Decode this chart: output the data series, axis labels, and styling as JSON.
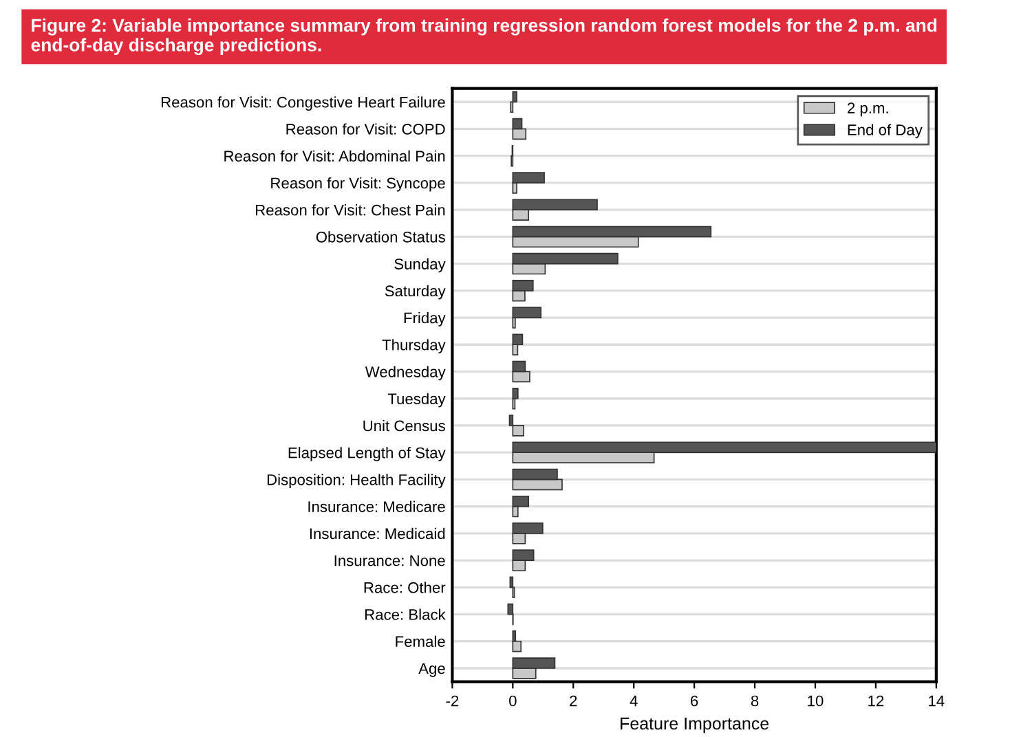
{
  "chart_data": {
    "type": "bar",
    "orientation": "horizontal",
    "title": "Figure 2: Variable importance summary from training regression random forest models for the 2 p.m. and end-of-day discharge predictions.",
    "xlabel": "Feature Importance",
    "categories": [
      "Reason for Visit: Congestive Heart Failure",
      "Reason for Visit: COPD",
      "Reason for Visit: Abdominal Pain",
      "Reason for Visit: Syncope",
      "Reason for Visit: Chest Pain",
      "Observation Status",
      "Sunday",
      "Saturday",
      "Friday",
      "Thursday",
      "Wednesday",
      "Tuesday",
      "Unit Census",
      "Elapsed Length of Stay",
      "Disposition: Health Facility",
      "Insurance: Medicare",
      "Insurance: Medicaid",
      "Insurance: None",
      "Race: Other",
      "Race: Black",
      "Female",
      "Age"
    ],
    "series": [
      {
        "name": "2 p.m.",
        "color": "#c8c8c8",
        "values": [
          -0.07,
          0.43,
          -0.05,
          0.13,
          0.52,
          4.15,
          1.07,
          0.4,
          0.08,
          0.16,
          0.56,
          0.07,
          0.36,
          4.67,
          1.63,
          0.17,
          0.41,
          0.41,
          0.05,
          0.01,
          0.27,
          0.76
        ]
      },
      {
        "name": "End of Day",
        "color": "#555555",
        "values": [
          0.13,
          0.3,
          -0.02,
          1.04,
          2.79,
          6.55,
          3.47,
          0.67,
          0.93,
          0.32,
          0.41,
          0.17,
          -0.11,
          14,
          1.47,
          0.52,
          0.99,
          0.69,
          -0.09,
          -0.16,
          0.09,
          1.39
        ]
      }
    ],
    "xlim": [
      -2,
      14
    ],
    "xticks": [
      -2,
      0,
      2,
      4,
      6,
      8,
      10,
      12,
      14
    ],
    "grid": "y",
    "legend": "top right"
  }
}
